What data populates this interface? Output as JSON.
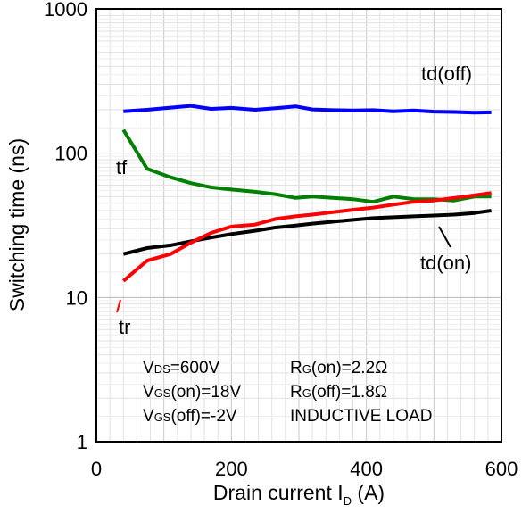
{
  "chart_data": {
    "type": "line",
    "xlabel": "Drain current I",
    "xlabel_sub": "D",
    "xlabel_unit": " (A)",
    "ylabel": "Switching time (ns)",
    "xlim": [
      0,
      600
    ],
    "ylim": [
      1,
      1000
    ],
    "y_scale": "log",
    "grid": true,
    "x_ticks": [
      0,
      200,
      400,
      600
    ],
    "y_ticks": [
      1,
      10,
      100,
      1000
    ],
    "x_tick_labels": [
      "0",
      "200",
      "400",
      "600"
    ],
    "y_tick_labels": [
      "1",
      "10",
      "100",
      "1000"
    ],
    "series": [
      {
        "name": "td(off)",
        "color": "#0000ff",
        "x": [
          40,
          75,
          110,
          140,
          170,
          200,
          235,
          265,
          295,
          320,
          350,
          380,
          410,
          440,
          470,
          500,
          530,
          560,
          585
        ],
        "y": [
          195,
          200,
          207,
          213,
          203,
          206,
          200,
          205,
          211,
          201,
          199,
          198,
          199,
          195,
          198,
          194,
          193,
          191,
          192
        ]
      },
      {
        "name": "tf",
        "color": "#008000",
        "x": [
          40,
          75,
          110,
          140,
          170,
          200,
          235,
          265,
          295,
          320,
          350,
          380,
          410,
          440,
          470,
          500,
          530,
          560,
          585
        ],
        "y": [
          145,
          78,
          68,
          62,
          58,
          56,
          54,
          52,
          49,
          50,
          49,
          48,
          46,
          50,
          48,
          48,
          47,
          50,
          50
        ]
      },
      {
        "name": "td(on)",
        "color": "#000000",
        "x": [
          40,
          75,
          110,
          140,
          170,
          200,
          235,
          265,
          295,
          320,
          350,
          380,
          410,
          440,
          470,
          500,
          530,
          560,
          585
        ],
        "y": [
          20,
          22,
          23,
          24.5,
          26,
          27.5,
          29,
          30.5,
          31.5,
          32.5,
          33.5,
          34.5,
          35.5,
          36,
          36.5,
          37,
          37.5,
          38.5,
          40
        ]
      },
      {
        "name": "tr",
        "color": "#ff0000",
        "x": [
          40,
          75,
          110,
          140,
          170,
          200,
          235,
          265,
          295,
          320,
          350,
          380,
          410,
          440,
          470,
          500,
          530,
          560,
          585
        ],
        "y": [
          13,
          18,
          20,
          24,
          28,
          31,
          32,
          35,
          36.5,
          37.5,
          39,
          40.5,
          42,
          44,
          46,
          47,
          49,
          51,
          53
        ]
      }
    ],
    "conditions": {
      "left": [
        "VDS=600V",
        "VGS(on)=18V",
        "VGS(off)=-2V"
      ],
      "right": [
        "RG(on)=2.2Ω",
        "RG(off)=1.8Ω",
        "INDUCTIVE LOAD"
      ]
    },
    "condition_parts": {
      "vds": {
        "a": "V",
        "sub": "DS",
        "b": "=600V"
      },
      "vgs_on": {
        "a": "V",
        "sub": "GS",
        "b": "(on)=18V"
      },
      "vgs_off": {
        "a": "V",
        "sub": "GS",
        "b": "(off)=-2V"
      },
      "rg_on": {
        "a": "R",
        "sub": "G",
        "b": "(on)=2.2Ω"
      },
      "rg_off": {
        "a": "R",
        "sub": "G",
        "b": "(off)=1.8Ω"
      },
      "load": "INDUCTIVE LOAD"
    }
  }
}
